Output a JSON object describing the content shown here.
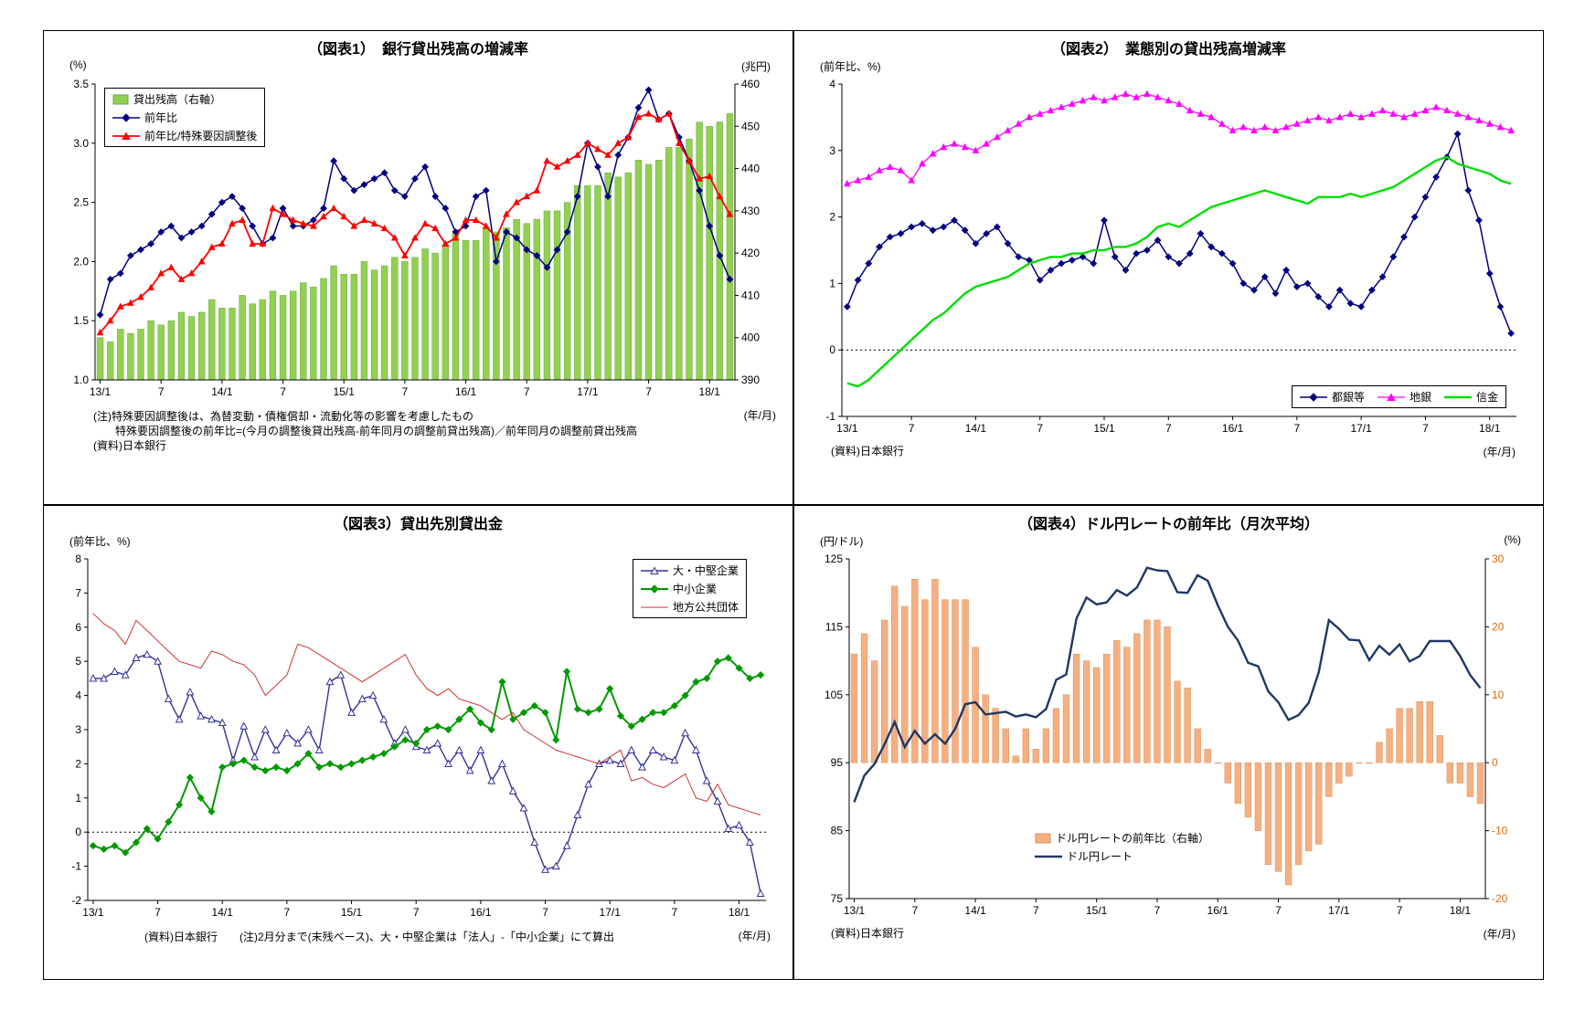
{
  "chart_data": [
    {
      "id": "fig1",
      "type": "bar+line",
      "title": "（図表1）　銀行貸出残高の増減率",
      "unit_left": "(%)",
      "unit_right": "(兆円)",
      "x_unit": "(年/月)",
      "x_ticks": [
        "13/1",
        "7",
        "14/1",
        "7",
        "15/1",
        "7",
        "16/1",
        "7",
        "17/1",
        "7",
        "18/1"
      ],
      "left_axis": {
        "min": 1.0,
        "max": 3.5,
        "step": 0.5,
        "decimals": 1
      },
      "right_axis": {
        "min": 390,
        "max": 460,
        "step": 10,
        "decimals": 0
      },
      "zero_line": false,
      "series": [
        {
          "key": "loan-balance",
          "name": "貸出残高（右軸）",
          "type": "bar",
          "axis": "right",
          "color": "#92d050",
          "edge": "#6aa84f",
          "values": [
            400,
            399,
            402,
            401,
            402,
            404,
            403,
            404,
            406,
            405,
            406,
            409,
            407,
            407,
            410,
            408,
            409,
            411,
            410,
            411,
            413,
            412,
            414,
            417,
            415,
            415,
            418,
            416,
            417,
            419,
            418,
            419,
            421,
            420,
            422,
            425,
            423,
            423,
            426,
            425,
            426,
            428,
            427,
            428,
            430,
            430,
            432,
            436,
            436,
            436,
            439,
            438,
            439,
            442,
            441,
            442,
            445,
            445,
            447,
            451,
            450,
            451,
            453
          ]
        },
        {
          "key": "yoy",
          "name": "前年比",
          "type": "line",
          "axis": "left",
          "color": "#000080",
          "marker": "diamond",
          "width": 1.5,
          "msize": 3.2,
          "values": [
            1.55,
            1.85,
            1.9,
            2.05,
            2.1,
            2.15,
            2.25,
            2.3,
            2.2,
            2.25,
            2.3,
            2.4,
            2.5,
            2.55,
            2.45,
            2.3,
            2.15,
            2.2,
            2.45,
            2.3,
            2.3,
            2.35,
            2.45,
            2.85,
            2.7,
            2.6,
            2.65,
            2.7,
            2.75,
            2.6,
            2.55,
            2.7,
            2.8,
            2.55,
            2.45,
            2.25,
            2.3,
            2.55,
            2.6,
            2.0,
            2.25,
            2.2,
            2.1,
            2.05,
            1.95,
            2.1,
            2.25,
            2.55,
            3.0,
            2.8,
            2.55,
            2.9,
            3.05,
            3.3,
            3.45,
            3.2,
            3.25,
            3.05,
            2.85,
            2.6,
            2.3,
            2.05,
            1.85
          ]
        },
        {
          "key": "yoy-adjusted",
          "name": "前年比/特殊要因調整後",
          "type": "line",
          "axis": "left",
          "color": "#ff0000",
          "marker": "triangle",
          "width": 1.8,
          "msize": 3.2,
          "values": [
            1.4,
            1.5,
            1.62,
            1.65,
            1.7,
            1.78,
            1.9,
            1.95,
            1.85,
            1.9,
            2.0,
            2.12,
            2.15,
            2.32,
            2.35,
            2.15,
            2.15,
            2.45,
            2.4,
            2.35,
            2.32,
            2.3,
            2.38,
            2.45,
            2.38,
            2.3,
            2.35,
            2.32,
            2.28,
            2.2,
            2.05,
            2.2,
            2.32,
            2.28,
            2.15,
            2.2,
            2.35,
            2.35,
            2.3,
            2.2,
            2.4,
            2.5,
            2.55,
            2.6,
            2.85,
            2.8,
            2.85,
            2.9,
            3.0,
            2.95,
            2.9,
            3.0,
            3.05,
            3.22,
            3.25,
            3.2,
            3.25,
            3.0,
            2.85,
            2.7,
            2.72,
            2.55,
            2.4
          ]
        }
      ],
      "notes": [
        "(注)特殊要因調整後は、為替変動・債権償却・流動化等の影響を考慮したもの",
        "　　特殊要因調整後の前年比=(今月の調整後貸出残高-前年同月の調整前貸出残高)／前年同月の調整前貸出残高",
        "(資料)日本銀行"
      ]
    },
    {
      "id": "fig2",
      "type": "line",
      "title": "（図表2）　業態別の貸出残高増減率",
      "unit_left": "(前年比、%)",
      "x_unit": "(年/月)",
      "x_ticks": [
        "13/1",
        "7",
        "14/1",
        "7",
        "15/1",
        "7",
        "16/1",
        "7",
        "17/1",
        "7",
        "18/1"
      ],
      "left_axis": {
        "min": -1,
        "max": 4,
        "step": 1,
        "decimals": 0
      },
      "zero_line": true,
      "series": [
        {
          "key": "city-banks",
          "name": "都銀等",
          "type": "line",
          "axis": "left",
          "color": "#000080",
          "marker": "diamond",
          "width": 1.5,
          "msize": 3.2,
          "values": [
            0.65,
            1.05,
            1.3,
            1.55,
            1.7,
            1.75,
            1.85,
            1.9,
            1.8,
            1.85,
            1.95,
            1.8,
            1.6,
            1.75,
            1.85,
            1.6,
            1.4,
            1.35,
            1.05,
            1.2,
            1.3,
            1.35,
            1.4,
            1.3,
            1.95,
            1.4,
            1.2,
            1.45,
            1.5,
            1.65,
            1.4,
            1.3,
            1.45,
            1.75,
            1.55,
            1.45,
            1.3,
            1.0,
            0.9,
            1.1,
            0.85,
            1.2,
            0.95,
            1.0,
            0.8,
            0.65,
            0.9,
            0.7,
            0.65,
            0.9,
            1.1,
            1.4,
            1.7,
            2.0,
            2.3,
            2.6,
            2.9,
            3.25,
            2.4,
            1.95,
            1.15,
            0.65,
            0.25
          ]
        },
        {
          "key": "regional-banks",
          "name": "地銀",
          "type": "line",
          "axis": "left",
          "color": "#ff00ff",
          "marker": "triangle",
          "width": 1.3,
          "msize": 3.2,
          "values": [
            2.5,
            2.55,
            2.6,
            2.7,
            2.75,
            2.7,
            2.55,
            2.8,
            2.95,
            3.05,
            3.1,
            3.05,
            3.0,
            3.1,
            3.2,
            3.3,
            3.4,
            3.5,
            3.55,
            3.6,
            3.65,
            3.7,
            3.75,
            3.8,
            3.75,
            3.8,
            3.85,
            3.8,
            3.85,
            3.8,
            3.75,
            3.7,
            3.6,
            3.55,
            3.5,
            3.4,
            3.3,
            3.35,
            3.3,
            3.35,
            3.3,
            3.35,
            3.4,
            3.45,
            3.5,
            3.45,
            3.5,
            3.55,
            3.5,
            3.55,
            3.6,
            3.55,
            3.5,
            3.55,
            3.6,
            3.65,
            3.6,
            3.55,
            3.5,
            3.45,
            3.4,
            3.35,
            3.3
          ]
        },
        {
          "key": "shinkin",
          "name": "信金",
          "type": "line",
          "axis": "left",
          "color": "#00dd00",
          "marker": "none",
          "width": 2.4,
          "values": [
            -0.5,
            -0.55,
            -0.45,
            -0.3,
            -0.15,
            0.0,
            0.15,
            0.3,
            0.45,
            0.55,
            0.7,
            0.85,
            0.95,
            1.0,
            1.05,
            1.1,
            1.2,
            1.3,
            1.35,
            1.4,
            1.4,
            1.45,
            1.45,
            1.5,
            1.5,
            1.55,
            1.55,
            1.6,
            1.7,
            1.85,
            1.9,
            1.85,
            1.95,
            2.05,
            2.15,
            2.2,
            2.25,
            2.3,
            2.35,
            2.4,
            2.35,
            2.3,
            2.25,
            2.2,
            2.3,
            2.3,
            2.3,
            2.35,
            2.3,
            2.35,
            2.4,
            2.45,
            2.55,
            2.65,
            2.75,
            2.85,
            2.9,
            2.8,
            2.75,
            2.7,
            2.65,
            2.55,
            2.5
          ]
        }
      ],
      "notes": [
        "(資料)日本銀行"
      ]
    },
    {
      "id": "fig3",
      "type": "line",
      "title": "（図表3）貸出先別貸出金",
      "unit_left": "(前年比、%)",
      "x_unit": "(年/月)",
      "x_ticks": [
        "13/1",
        "7",
        "14/1",
        "7",
        "15/1",
        "7",
        "16/1",
        "7",
        "17/1",
        "7",
        "18/1"
      ],
      "left_axis": {
        "min": -2,
        "max": 8,
        "step": 1,
        "decimals": 0
      },
      "zero_line": true,
      "series": [
        {
          "key": "large-firms",
          "name": "大・中堅企業",
          "type": "line",
          "axis": "left",
          "color": "#333399",
          "marker": "triangle",
          "open": true,
          "width": 1.4,
          "msize": 3.8,
          "values": [
            4.5,
            4.5,
            4.7,
            4.6,
            5.1,
            5.2,
            5.0,
            3.9,
            3.3,
            4.1,
            3.4,
            3.3,
            3.2,
            2.1,
            3.1,
            2.2,
            3.0,
            2.4,
            2.9,
            2.6,
            3.0,
            2.4,
            4.4,
            4.6,
            3.5,
            3.9,
            4.0,
            3.3,
            2.6,
            3.0,
            2.5,
            2.4,
            2.6,
            2.0,
            2.4,
            1.8,
            2.4,
            1.5,
            2.0,
            1.2,
            0.7,
            -0.3,
            -1.1,
            -1.0,
            -0.4,
            0.5,
            1.4,
            2.0,
            2.1,
            2.0,
            2.4,
            1.9,
            2.4,
            2.2,
            2.1,
            2.9,
            2.4,
            1.5,
            0.9,
            0.1,
            0.2,
            -0.3,
            -1.8
          ]
        },
        {
          "key": "sme",
          "name": "中小企業",
          "type": "line",
          "axis": "left",
          "color": "#009900",
          "marker": "diamond",
          "width": 2.0,
          "msize": 3.4,
          "values": [
            -0.4,
            -0.5,
            -0.4,
            -0.6,
            -0.3,
            0.1,
            -0.2,
            0.3,
            0.8,
            1.6,
            1.0,
            0.6,
            1.9,
            2.0,
            2.1,
            1.9,
            1.8,
            1.9,
            1.8,
            2.0,
            2.3,
            1.9,
            2.0,
            1.9,
            2.0,
            2.1,
            2.2,
            2.3,
            2.5,
            2.7,
            2.6,
            3.0,
            3.1,
            3.0,
            3.3,
            3.6,
            3.2,
            3.0,
            4.4,
            3.3,
            3.5,
            3.7,
            3.5,
            2.7,
            4.7,
            3.6,
            3.5,
            3.6,
            4.2,
            3.4,
            3.1,
            3.3,
            3.5,
            3.5,
            3.7,
            4.0,
            4.4,
            4.5,
            5.0,
            5.1,
            4.8,
            4.5,
            4.6
          ]
        },
        {
          "key": "local-government",
          "name": "地方公共団体",
          "type": "line",
          "axis": "left",
          "color": "#cc3333",
          "marker": "none",
          "width": 1.0,
          "values": [
            6.4,
            6.1,
            5.9,
            5.5,
            6.2,
            5.9,
            5.6,
            5.3,
            5.0,
            4.9,
            4.8,
            5.3,
            5.2,
            5.0,
            4.9,
            4.6,
            4.0,
            4.3,
            4.6,
            5.5,
            5.4,
            5.2,
            5.0,
            4.8,
            4.6,
            4.4,
            4.6,
            4.8,
            5.0,
            5.2,
            4.6,
            4.2,
            4.0,
            4.2,
            3.9,
            3.8,
            3.7,
            3.5,
            3.3,
            3.5,
            3.0,
            2.8,
            2.6,
            2.4,
            2.3,
            2.2,
            2.1,
            2.0,
            2.2,
            2.4,
            1.5,
            1.6,
            1.4,
            1.3,
            1.5,
            1.7,
            1.0,
            0.9,
            1.4,
            0.8,
            0.7,
            0.6,
            0.5
          ]
        }
      ],
      "notes": [
        "(資料)日本銀行　　(注)2月分まで(末残ベース)、大・中堅企業は「法人」-「中小企業」にて算出"
      ]
    },
    {
      "id": "fig4",
      "type": "bar+line",
      "title": "（図表4）ドル円レートの前年比（月次平均）",
      "unit_left": "(円/ドル)",
      "unit_right": "(%)",
      "x_unit": "(年/月)",
      "x_ticks": [
        "13/1",
        "7",
        "14/1",
        "7",
        "15/1",
        "7",
        "16/1",
        "7",
        "17/1",
        "7",
        "18/1"
      ],
      "left_axis": {
        "min": 75,
        "max": 125,
        "step": 10,
        "decimals": 0
      },
      "right_axis": {
        "min": -20,
        "max": 30,
        "step": 10,
        "decimals": 0,
        "color": "#e26b0a"
      },
      "zero_line": false,
      "series": [
        {
          "key": "usdjpy-yoy",
          "name": "ドル円レートの前年比（右軸）",
          "type": "bar",
          "axis": "right",
          "base": 0,
          "color": "#f4b083",
          "edge": "#d99057",
          "values": [
            16,
            19,
            15,
            21,
            26,
            23,
            27,
            24,
            27,
            24,
            24,
            24,
            17,
            10,
            8,
            5,
            1,
            5,
            2,
            5,
            8,
            10,
            16,
            15,
            14,
            16,
            18,
            17,
            19,
            21,
            21,
            20,
            12,
            11,
            5,
            2,
            0,
            -3,
            -6,
            -8,
            -10,
            -15,
            -16,
            -18,
            -15,
            -13,
            -12,
            -5,
            -3,
            -2,
            0,
            0,
            3,
            5,
            8,
            8,
            9,
            9,
            4,
            -3,
            -3,
            -5,
            -6
          ]
        },
        {
          "key": "usdjpy-rate",
          "name": "ドル円レート",
          "type": "line",
          "axis": "left",
          "color": "#1f3864",
          "marker": "none",
          "width": 2.4,
          "values": [
            89.2,
            93.1,
            94.8,
            97.7,
            101.0,
            97.3,
            99.7,
            97.8,
            99.2,
            97.8,
            100.0,
            103.6,
            103.9,
            102.1,
            102.3,
            102.5,
            101.8,
            102.1,
            101.7,
            102.9,
            107.2,
            108.0,
            116.2,
            119.3,
            118.3,
            118.6,
            120.4,
            119.6,
            120.8,
            123.7,
            123.3,
            123.2,
            120.1,
            120.0,
            122.6,
            121.8,
            118.2,
            115.0,
            113.0,
            109.7,
            109.2,
            105.5,
            103.9,
            101.3,
            102.0,
            103.8,
            108.3,
            116.0,
            114.7,
            113.1,
            113.0,
            110.1,
            112.2,
            110.9,
            112.4,
            109.9,
            110.7,
            112.9,
            112.9,
            112.9,
            110.7,
            107.9,
            106.0
          ]
        }
      ],
      "notes": [
        "(資料)日本銀行"
      ]
    }
  ]
}
